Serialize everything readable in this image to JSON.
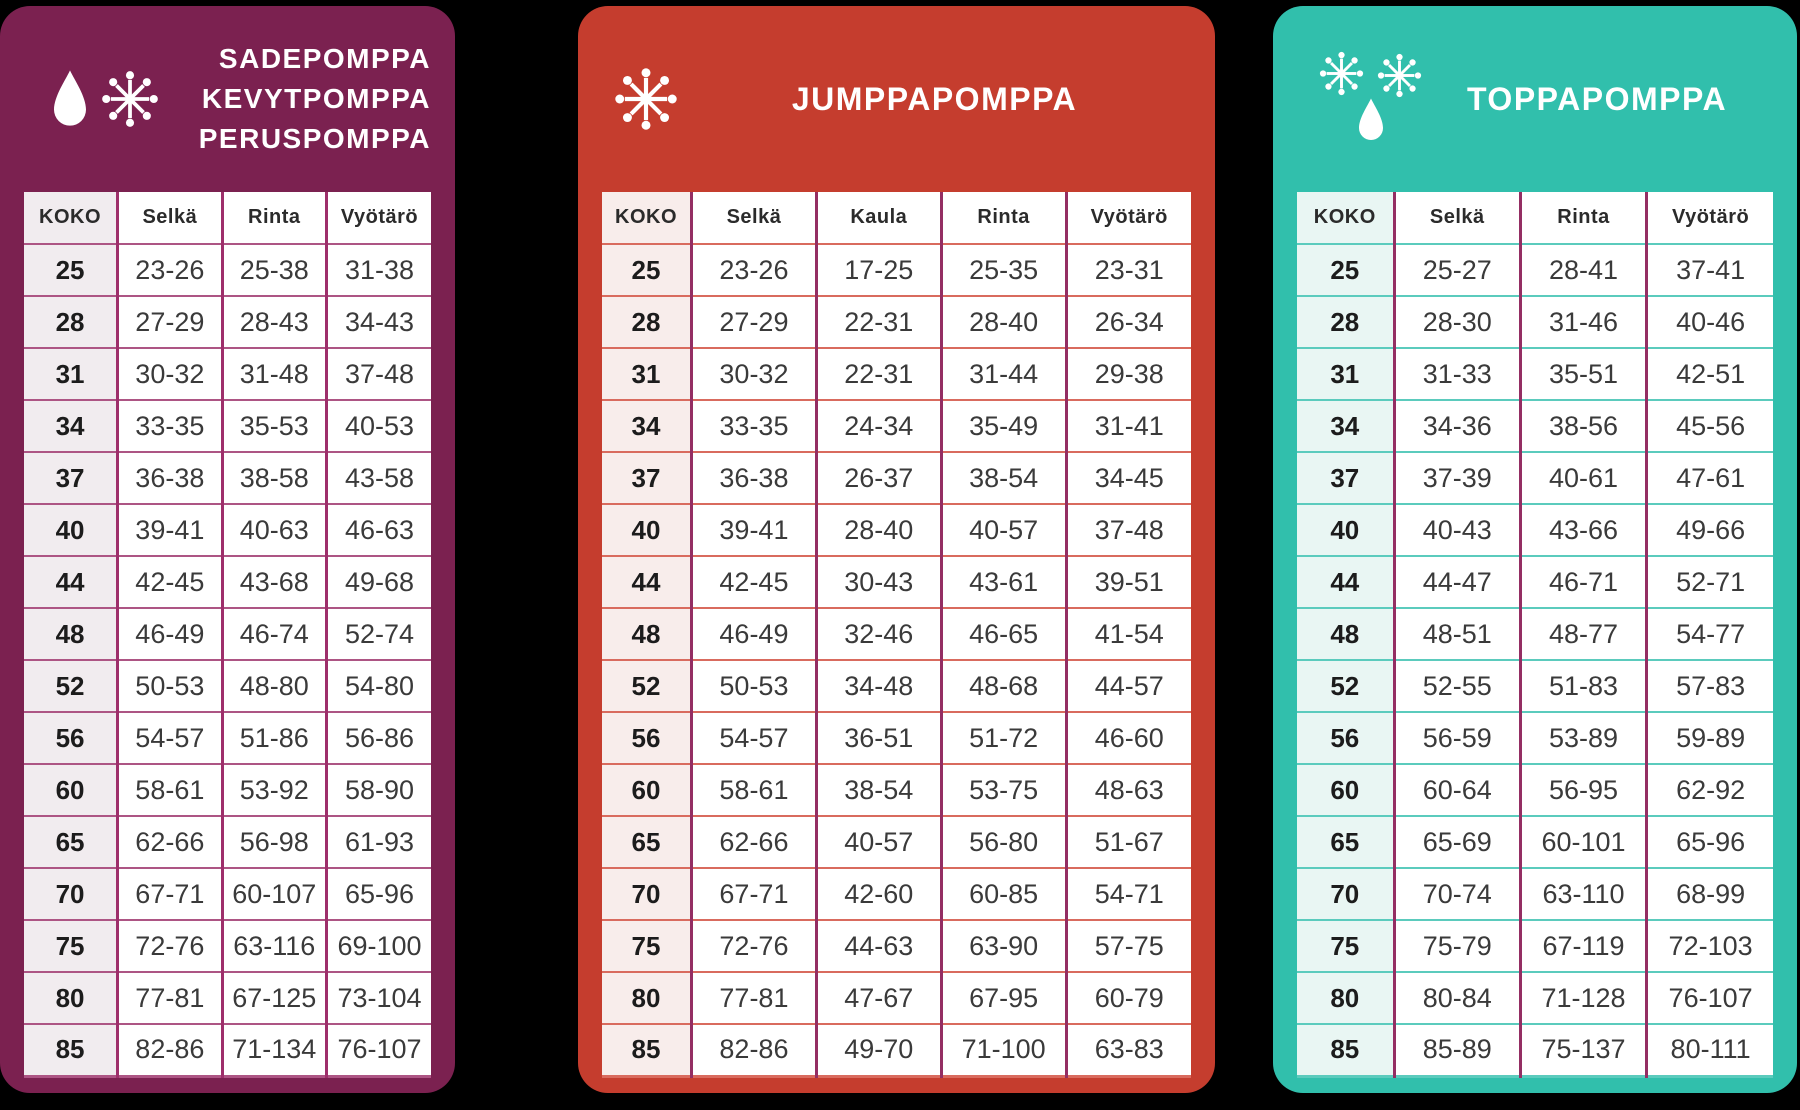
{
  "panels": [
    {
      "title_lines": [
        "SADEPOMPPA",
        "KEVYTPOMPPA",
        "PERUSPOMPPA"
      ],
      "icons": [
        "raindrop-icon",
        "snowflake-icon"
      ],
      "colors": {
        "panel_bg": "#7b2150",
        "vertical_border": "#9e2f6b",
        "horizontal_border": "#ad5584",
        "label_bg": "#f1ecef"
      }
    },
    {
      "title_lines": [
        "JUMPPAPOMPPA"
      ],
      "icons": [
        "snowflake-icon"
      ],
      "colors": {
        "panel_bg": "#c53d2e",
        "vertical_border": "#942e63",
        "horizontal_border": "#d96b5e",
        "label_bg": "#f8edeb"
      }
    },
    {
      "title_lines": [
        "TOPPAPOMPPA"
      ],
      "icons": [
        "snowflake-icon",
        "snowflake-icon",
        "raindrop-icon"
      ],
      "colors": {
        "panel_bg": "#31bfac",
        "vertical_border": "#942e63",
        "horizontal_border": "#5bcbbd",
        "label_bg": "#e9f6f3"
      }
    }
  ],
  "chart_data": [
    {
      "type": "table",
      "title": "SADEPOMPPA / KEVYTPOMPPA / PERUSPOMPPA",
      "columns": [
        "KOKO",
        "Selkä",
        "Rinta",
        "Vyötärö"
      ],
      "rows": [
        [
          "25",
          "23-26",
          "25-38",
          "31-38"
        ],
        [
          "28",
          "27-29",
          "28-43",
          "34-43"
        ],
        [
          "31",
          "30-32",
          "31-48",
          "37-48"
        ],
        [
          "34",
          "33-35",
          "35-53",
          "40-53"
        ],
        [
          "37",
          "36-38",
          "38-58",
          "43-58"
        ],
        [
          "40",
          "39-41",
          "40-63",
          "46-63"
        ],
        [
          "44",
          "42-45",
          "43-68",
          "49-68"
        ],
        [
          "48",
          "46-49",
          "46-74",
          "52-74"
        ],
        [
          "52",
          "50-53",
          "48-80",
          "54-80"
        ],
        [
          "56",
          "54-57",
          "51-86",
          "56-86"
        ],
        [
          "60",
          "58-61",
          "53-92",
          "58-90"
        ],
        [
          "65",
          "62-66",
          "56-98",
          "61-93"
        ],
        [
          "70",
          "67-71",
          "60-107",
          "65-96"
        ],
        [
          "75",
          "72-76",
          "63-116",
          "69-100"
        ],
        [
          "80",
          "77-81",
          "67-125",
          "73-104"
        ],
        [
          "85",
          "82-86",
          "71-134",
          "76-107"
        ]
      ]
    },
    {
      "type": "table",
      "title": "JUMPPAPOMPPA",
      "columns": [
        "KOKO",
        "Selkä",
        "Kaula",
        "Rinta",
        "Vyötärö"
      ],
      "rows": [
        [
          "25",
          "23-26",
          "17-25",
          "25-35",
          "23-31"
        ],
        [
          "28",
          "27-29",
          "22-31",
          "28-40",
          "26-34"
        ],
        [
          "31",
          "30-32",
          "22-31",
          "31-44",
          "29-38"
        ],
        [
          "34",
          "33-35",
          "24-34",
          "35-49",
          "31-41"
        ],
        [
          "37",
          "36-38",
          "26-37",
          "38-54",
          "34-45"
        ],
        [
          "40",
          "39-41",
          "28-40",
          "40-57",
          "37-48"
        ],
        [
          "44",
          "42-45",
          "30-43",
          "43-61",
          "39-51"
        ],
        [
          "48",
          "46-49",
          "32-46",
          "46-65",
          "41-54"
        ],
        [
          "52",
          "50-53",
          "34-48",
          "48-68",
          "44-57"
        ],
        [
          "56",
          "54-57",
          "36-51",
          "51-72",
          "46-60"
        ],
        [
          "60",
          "58-61",
          "38-54",
          "53-75",
          "48-63"
        ],
        [
          "65",
          "62-66",
          "40-57",
          "56-80",
          "51-67"
        ],
        [
          "70",
          "67-71",
          "42-60",
          "60-85",
          "54-71"
        ],
        [
          "75",
          "72-76",
          "44-63",
          "63-90",
          "57-75"
        ],
        [
          "80",
          "77-81",
          "47-67",
          "67-95",
          "60-79"
        ],
        [
          "85",
          "82-86",
          "49-70",
          "71-100",
          "63-83"
        ]
      ]
    },
    {
      "type": "table",
      "title": "TOPPAPOMPPA",
      "columns": [
        "KOKO",
        "Selkä",
        "Rinta",
        "Vyötärö"
      ],
      "rows": [
        [
          "25",
          "25-27",
          "28-41",
          "37-41"
        ],
        [
          "28",
          "28-30",
          "31-46",
          "40-46"
        ],
        [
          "31",
          "31-33",
          "35-51",
          "42-51"
        ],
        [
          "34",
          "34-36",
          "38-56",
          "45-56"
        ],
        [
          "37",
          "37-39",
          "40-61",
          "47-61"
        ],
        [
          "40",
          "40-43",
          "43-66",
          "49-66"
        ],
        [
          "44",
          "44-47",
          "46-71",
          "52-71"
        ],
        [
          "48",
          "48-51",
          "48-77",
          "54-77"
        ],
        [
          "52",
          "52-55",
          "51-83",
          "57-83"
        ],
        [
          "56",
          "56-59",
          "53-89",
          "59-89"
        ],
        [
          "60",
          "60-64",
          "56-95",
          "62-92"
        ],
        [
          "65",
          "65-69",
          "60-101",
          "65-96"
        ],
        [
          "70",
          "70-74",
          "63-110",
          "68-99"
        ],
        [
          "75",
          "75-79",
          "67-119",
          "72-103"
        ],
        [
          "80",
          "80-84",
          "71-128",
          "76-107"
        ],
        [
          "85",
          "85-89",
          "75-137",
          "80-111"
        ]
      ]
    }
  ]
}
